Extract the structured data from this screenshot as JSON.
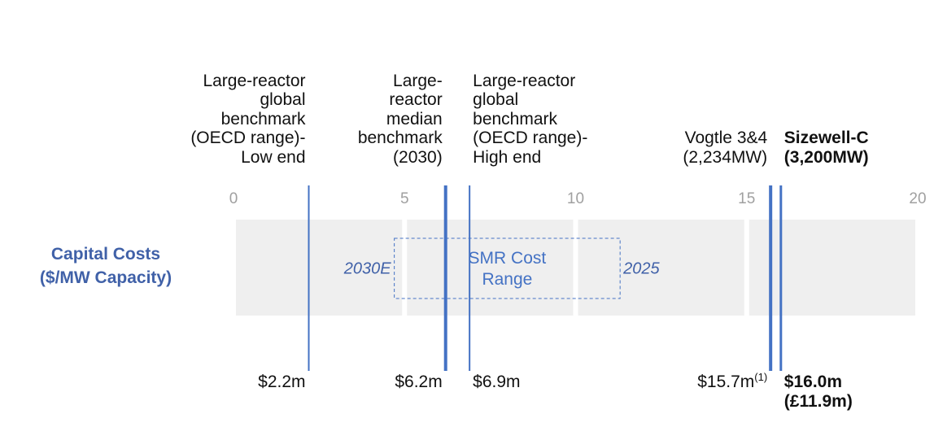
{
  "chart_data": {
    "type": "marker",
    "ylabel": [
      "Capital Costs",
      "($/MW Capacity)"
    ],
    "xlim": [
      0,
      20
    ],
    "xticks": [
      0,
      5,
      10,
      15,
      20
    ],
    "grid": true,
    "color": "#4472c4",
    "range": {
      "label": "SMR Cost Range",
      "low": 4.7,
      "high": 11.3,
      "low_label": "2030E",
      "high_label": "2025"
    },
    "markers": [
      {
        "label": "Large-reactor global benchmark (OECD range)-Low end",
        "value": 2.2,
        "value_label": "$2.2m"
      },
      {
        "label": "Large-reactor median benchmark (2030)",
        "value": 6.2,
        "value_label": "$6.2m"
      },
      {
        "label": "Large-reactor global benchmark (OECD range)-High end",
        "value": 6.9,
        "value_label": "$6.9m"
      },
      {
        "label": "Vogtle 3&4 (2,234MW)",
        "value": 15.7,
        "value_label": "$15.7m",
        "note": "(1)"
      },
      {
        "label": "Sizewell-C (3,200MW)",
        "value": 16.0,
        "value_label": "$16.0m",
        "alt_label": "(£11.9m)",
        "bold": true
      }
    ]
  }
}
